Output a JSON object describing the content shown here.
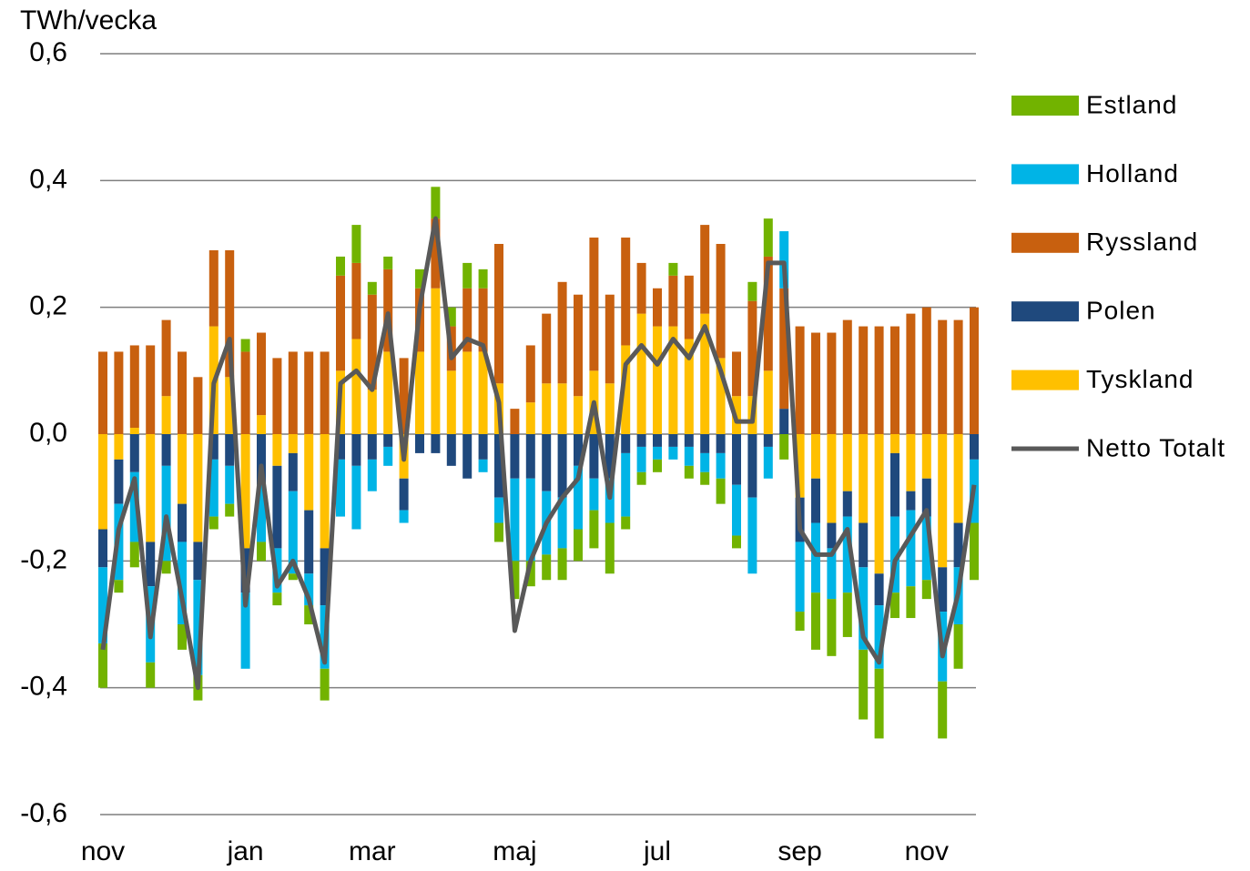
{
  "chart_data": {
    "type": "bar",
    "y_axis_label": "TWh/vecka",
    "stacked": true,
    "categories": [
      "nov",
      null,
      null,
      null,
      null,
      null,
      null,
      null,
      null,
      "jan",
      null,
      null,
      null,
      null,
      null,
      null,
      null,
      "mar",
      null,
      null,
      null,
      null,
      null,
      null,
      null,
      null,
      "maj",
      null,
      null,
      null,
      null,
      null,
      null,
      null,
      null,
      "jul",
      null,
      null,
      null,
      null,
      null,
      null,
      null,
      null,
      "sep",
      null,
      null,
      null,
      null,
      null,
      null,
      null,
      "nov",
      null,
      null,
      null
    ],
    "series": [
      {
        "name": "Tyskland",
        "color": "#ffc000",
        "values": [
          -0.15,
          -0.04,
          0.01,
          -0.17,
          0.06,
          -0.11,
          -0.17,
          0.17,
          0.09,
          -0.18,
          0.03,
          -0.05,
          -0.03,
          -0.12,
          -0.18,
          0.1,
          0.15,
          0.07,
          0.13,
          -0.07,
          0.13,
          0.23,
          0.1,
          0.13,
          0.13,
          0.08,
          0.0,
          0.05,
          0.08,
          0.08,
          0.06,
          0.1,
          0.08,
          0.14,
          0.19,
          0.17,
          0.17,
          0.15,
          0.19,
          0.12,
          0.06,
          0.06,
          0.1,
          0.0,
          -0.1,
          -0.07,
          -0.14,
          -0.09,
          -0.14,
          -0.22,
          -0.03,
          -0.09,
          -0.07,
          -0.21,
          -0.14,
          0.0
        ]
      },
      {
        "name": "Polen",
        "color": "#1f497d",
        "values": [
          -0.06,
          -0.07,
          -0.06,
          -0.07,
          -0.05,
          -0.06,
          -0.06,
          -0.04,
          -0.05,
          -0.07,
          -0.08,
          -0.13,
          -0.06,
          -0.1,
          -0.09,
          -0.04,
          -0.05,
          -0.04,
          -0.02,
          -0.05,
          -0.03,
          -0.03,
          -0.05,
          -0.07,
          -0.04,
          -0.1,
          -0.07,
          -0.07,
          -0.09,
          -0.1,
          -0.05,
          -0.07,
          -0.07,
          -0.03,
          -0.02,
          -0.02,
          -0.02,
          -0.02,
          -0.03,
          -0.03,
          -0.08,
          -0.1,
          -0.02,
          0.04,
          -0.07,
          -0.07,
          -0.04,
          -0.04,
          -0.07,
          -0.05,
          -0.1,
          -0.03,
          -0.06,
          -0.07,
          -0.07,
          -0.04
        ]
      },
      {
        "name": "Ryssland",
        "color": "#c8600f",
        "values": [
          0.13,
          0.13,
          0.13,
          0.14,
          0.12,
          0.13,
          0.09,
          0.12,
          0.2,
          0.13,
          0.13,
          0.12,
          0.13,
          0.13,
          0.13,
          0.15,
          0.12,
          0.15,
          0.13,
          0.12,
          0.1,
          0.11,
          0.07,
          0.1,
          0.1,
          0.22,
          0.04,
          0.09,
          0.11,
          0.16,
          0.16,
          0.21,
          0.14,
          0.17,
          0.08,
          0.06,
          0.08,
          0.1,
          0.14,
          0.18,
          0.07,
          0.15,
          0.18,
          0.19,
          0.17,
          0.16,
          0.16,
          0.18,
          0.17,
          0.17,
          0.17,
          0.19,
          0.2,
          0.18,
          0.18,
          0.2
        ]
      },
      {
        "name": "Holland",
        "color": "#00b4e6",
        "values": [
          -0.12,
          -0.12,
          -0.11,
          -0.12,
          -0.15,
          -0.13,
          -0.15,
          -0.09,
          -0.06,
          -0.12,
          -0.09,
          -0.07,
          -0.13,
          -0.05,
          -0.1,
          -0.09,
          -0.1,
          -0.05,
          -0.03,
          -0.02,
          0.0,
          0.0,
          0.0,
          0.0,
          -0.02,
          -0.04,
          -0.13,
          -0.13,
          -0.1,
          -0.08,
          -0.1,
          -0.05,
          -0.07,
          -0.1,
          -0.04,
          -0.02,
          -0.02,
          -0.03,
          -0.03,
          -0.04,
          -0.08,
          -0.12,
          -0.05,
          0.09,
          -0.11,
          -0.11,
          -0.08,
          -0.12,
          -0.13,
          -0.1,
          -0.12,
          -0.12,
          -0.1,
          -0.11,
          -0.09,
          -0.1
        ]
      },
      {
        "name": "Estland",
        "color": "#72b300",
        "values": [
          -0.07,
          -0.02,
          -0.04,
          -0.04,
          -0.02,
          -0.04,
          -0.04,
          -0.02,
          -0.02,
          0.02,
          -0.03,
          -0.02,
          -0.01,
          -0.03,
          -0.05,
          0.03,
          0.06,
          0.02,
          0.02,
          0.0,
          0.03,
          0.05,
          0.03,
          0.04,
          0.03,
          -0.03,
          -0.06,
          -0.04,
          -0.04,
          -0.05,
          -0.05,
          -0.06,
          -0.08,
          -0.02,
          -0.02,
          -0.02,
          0.02,
          -0.02,
          -0.02,
          -0.04,
          -0.02,
          0.03,
          0.06,
          -0.04,
          -0.03,
          -0.09,
          -0.09,
          -0.07,
          -0.11,
          -0.11,
          -0.04,
          -0.05,
          -0.03,
          -0.09,
          -0.07,
          -0.09
        ]
      },
      {
        "name": "Netto Totalt",
        "color": "#595959",
        "type": "line",
        "values": [
          -0.34,
          -0.15,
          -0.07,
          -0.32,
          -0.13,
          -0.26,
          -0.4,
          0.08,
          0.15,
          -0.27,
          -0.05,
          -0.24,
          -0.2,
          -0.26,
          -0.36,
          0.08,
          0.1,
          0.07,
          0.19,
          -0.04,
          0.2,
          0.34,
          0.12,
          0.15,
          0.14,
          0.05,
          -0.31,
          -0.2,
          -0.14,
          -0.1,
          -0.07,
          0.05,
          -0.1,
          0.11,
          0.14,
          0.11,
          0.15,
          0.12,
          0.17,
          0.1,
          0.02,
          0.02,
          0.27,
          0.27,
          -0.15,
          -0.19,
          -0.19,
          -0.15,
          -0.32,
          -0.36,
          -0.2,
          -0.16,
          -0.12,
          -0.35,
          -0.25,
          -0.08
        ]
      }
    ],
    "ylim": [
      -0.6,
      0.6
    ],
    "yticks": [
      {
        "value": -0.6,
        "label": "-0,6"
      },
      {
        "value": -0.4,
        "label": "-0,4"
      },
      {
        "value": -0.2,
        "label": "-0,2"
      },
      {
        "value": 0,
        "label": "0,0"
      },
      {
        "value": 0.2,
        "label": "0,2"
      },
      {
        "value": 0.4,
        "label": "0,4"
      },
      {
        "value": 0.6,
        "label": "0,6"
      }
    ],
    "grid": true,
    "legend": "right"
  }
}
